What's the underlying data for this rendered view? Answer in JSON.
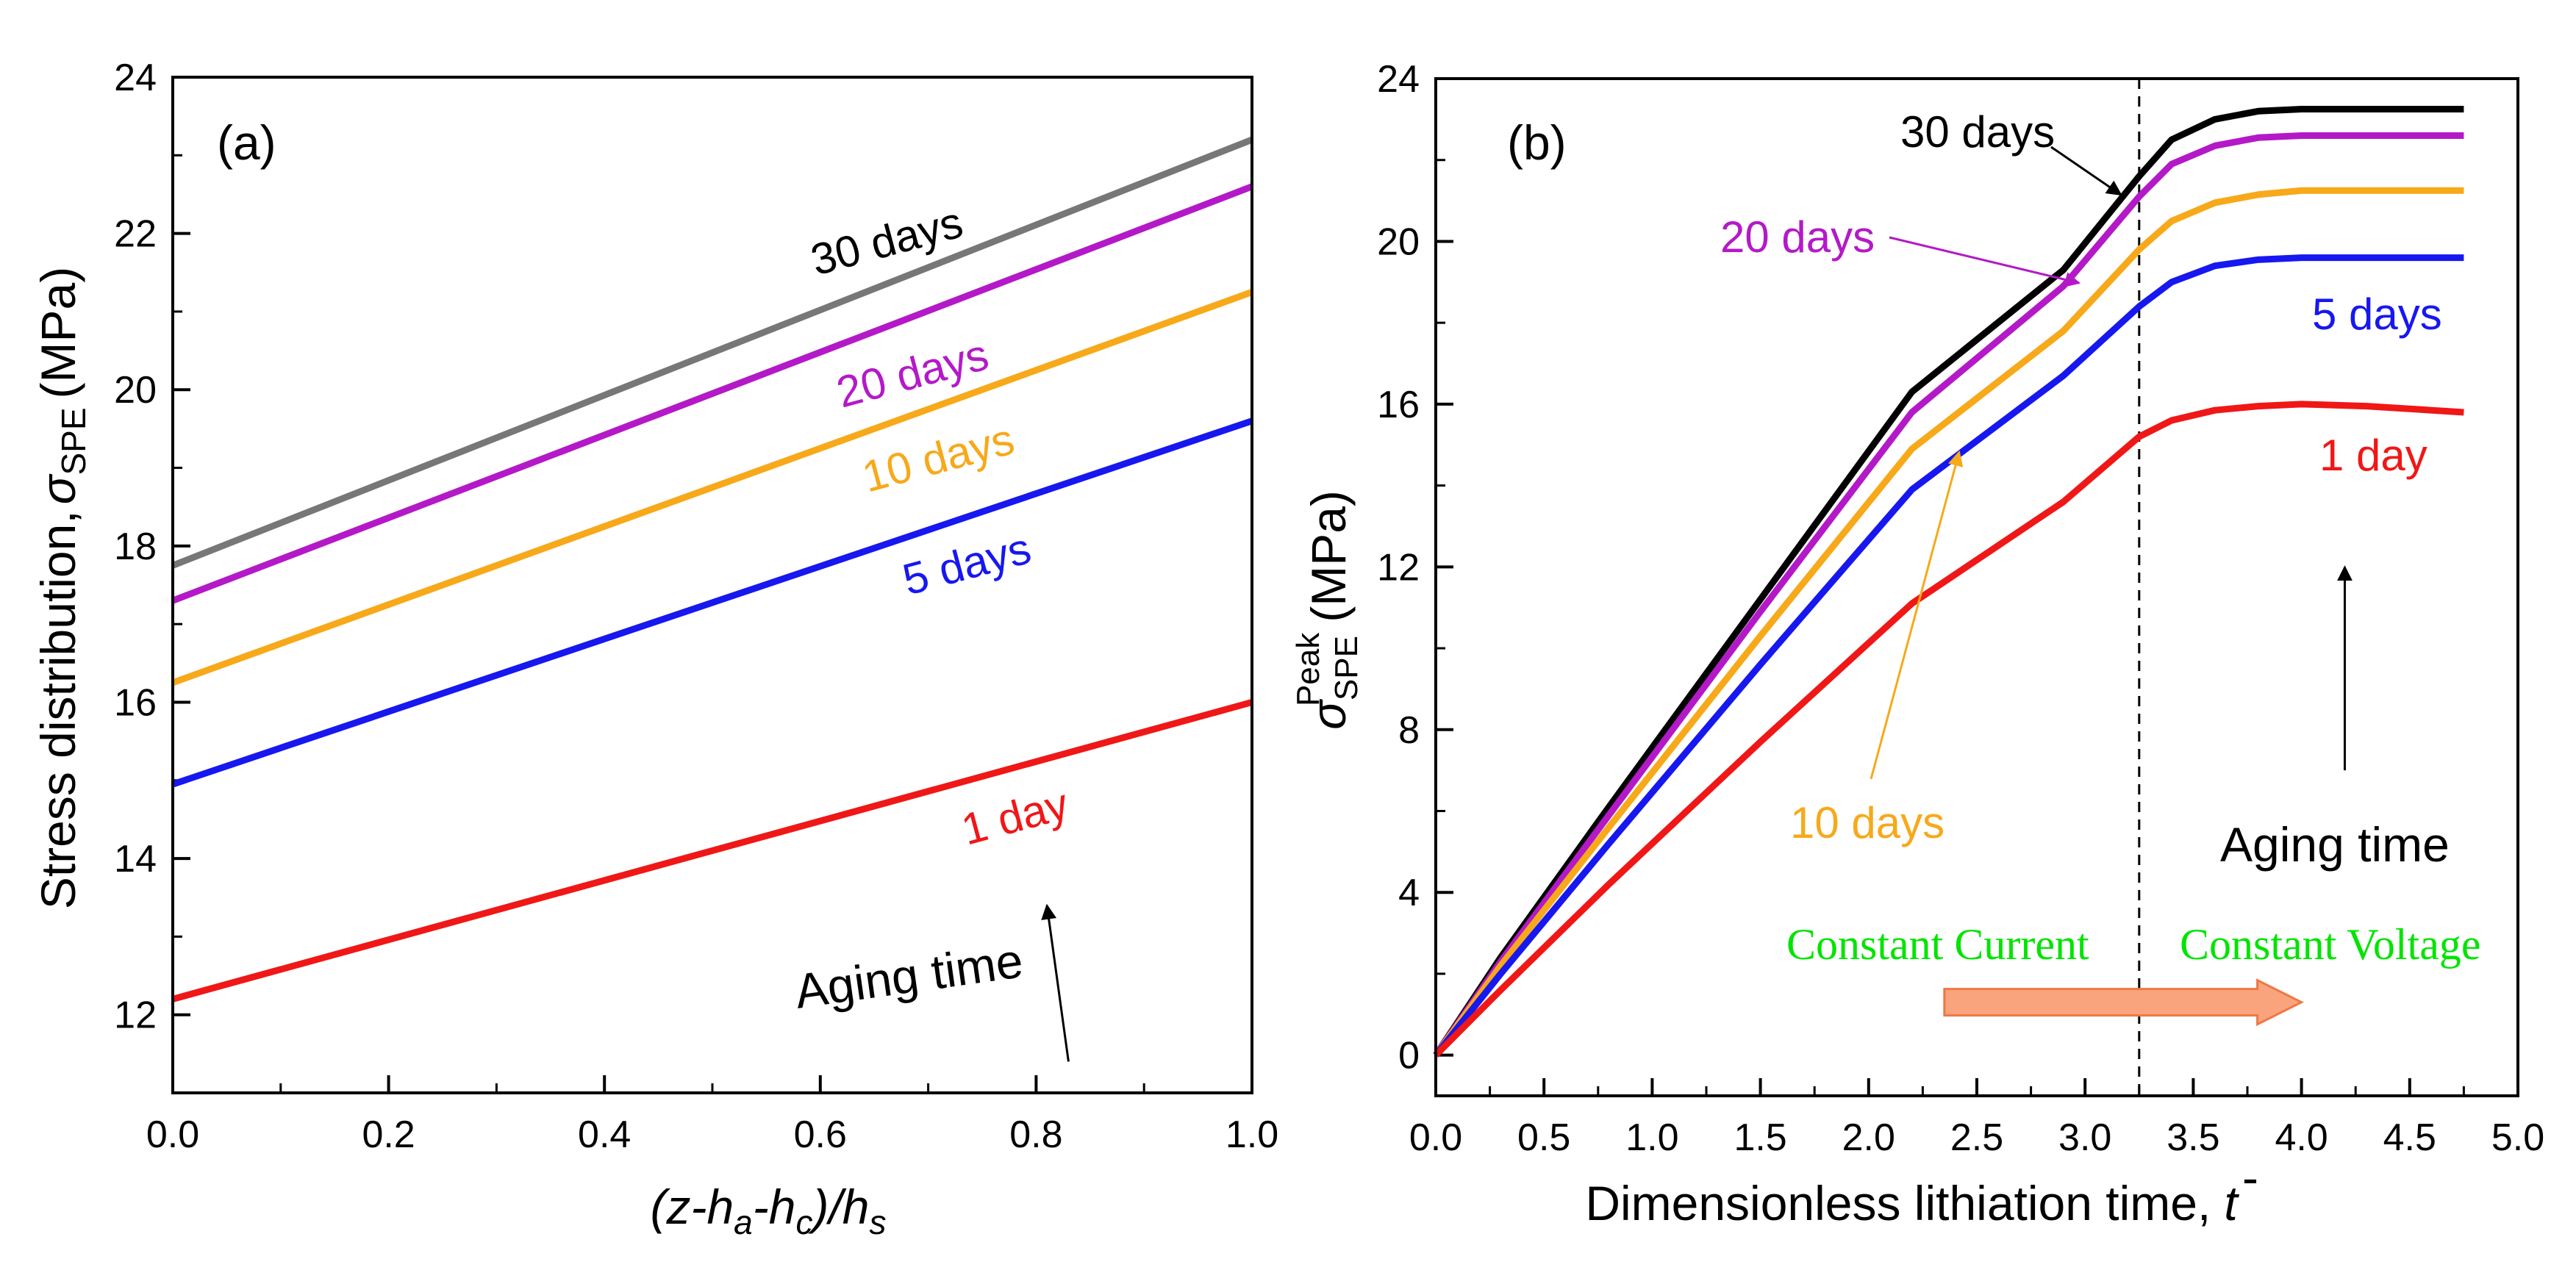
{
  "chart_data": [
    {
      "panel": "(a)",
      "type": "line",
      "xlabel": "(z-h_a-h_c)/h_s",
      "xlabel_parts": [
        "(z-",
        "h",
        "a",
        "-",
        "h",
        "c",
        ")/",
        "h",
        "s"
      ],
      "ylabel": "Stress distribution, σ_SPE (MPa)",
      "ylabel_parts": [
        "Stress distribution,",
        "σ",
        "SPE",
        "(MPa)"
      ],
      "xlim": [
        0.0,
        1.0
      ],
      "ylim": [
        11,
        24
      ],
      "xticks": [
        0.0,
        0.2,
        0.4,
        0.6,
        0.8,
        1.0
      ],
      "xtick_labels": [
        "0.0",
        "0.2",
        "0.4",
        "0.6",
        "0.8",
        "1.0"
      ],
      "yticks": [
        12,
        14,
        16,
        18,
        20,
        22,
        24
      ],
      "ytick_labels": [
        "12",
        "14",
        "16",
        "18",
        "20",
        "22",
        "24"
      ],
      "series": [
        {
          "name": "30 days",
          "color": "#777777",
          "x": [
            0.0,
            1.0
          ],
          "y": [
            17.75,
            23.2
          ]
        },
        {
          "name": "20 days",
          "color": "#b419c8",
          "x": [
            0.0,
            1.0
          ],
          "y": [
            17.3,
            22.6
          ]
        },
        {
          "name": "10 days",
          "color": "#f7a91a",
          "x": [
            0.0,
            1.0
          ],
          "y": [
            16.25,
            21.25
          ]
        },
        {
          "name": "5 days",
          "color": "#1717f0",
          "x": [
            0.0,
            1.0
          ],
          "y": [
            14.95,
            19.6
          ]
        },
        {
          "name": "1 day",
          "color": "#f01717",
          "x": [
            0.0,
            1.0
          ],
          "y": [
            12.2,
            16.0
          ]
        }
      ],
      "annotations": [
        {
          "text": "Aging time",
          "arrow_from": [
            0.83,
            11.4
          ],
          "arrow_to": [
            0.81,
            13.4
          ]
        }
      ]
    },
    {
      "panel": "(b)",
      "type": "line",
      "xlabel": "Dimensionless lithiation time, t̄",
      "xlabel_parts": [
        "Dimensionless lithiation time,",
        "t",
        "-"
      ],
      "ylabel": "σ_SPE^Peak (MPa)",
      "ylabel_parts": [
        "σ",
        "SPE",
        "Peak",
        "(MPa)"
      ],
      "xlim": [
        0.0,
        5.0
      ],
      "ylim": [
        -1,
        24
      ],
      "xticks": [
        0.0,
        0.5,
        1.0,
        1.5,
        2.0,
        2.5,
        3.0,
        3.5,
        4.0,
        4.5,
        5.0
      ],
      "xtick_labels": [
        "0.0",
        "0.5",
        "1.0",
        "1.5",
        "2.0",
        "2.5",
        "3.0",
        "3.5",
        "4.0",
        "4.5",
        "5.0"
      ],
      "yticks": [
        0,
        4,
        8,
        12,
        16,
        20,
        24
      ],
      "ytick_labels": [
        "0",
        "4",
        "8",
        "12",
        "16",
        "20",
        "24"
      ],
      "vline_x": 3.25,
      "series": [
        {
          "name": "30 days",
          "color": "#000000",
          "x": [
            0,
            0.3,
            0.8,
            1.5,
            2.2,
            2.9,
            3.25,
            3.4,
            3.6,
            3.8,
            4.0,
            4.3,
            4.75
          ],
          "y": [
            0,
            2.4,
            6.1,
            11.2,
            16.3,
            19.3,
            21.6,
            22.5,
            23.0,
            23.2,
            23.25,
            23.25,
            23.25
          ]
        },
        {
          "name": "20 days",
          "color": "#b419c8",
          "x": [
            0,
            0.3,
            0.8,
            1.5,
            2.2,
            2.9,
            3.25,
            3.4,
            3.6,
            3.8,
            4.0,
            4.3,
            4.75
          ],
          "y": [
            0,
            2.3,
            5.9,
            10.9,
            15.8,
            18.9,
            21.1,
            21.9,
            22.35,
            22.55,
            22.6,
            22.6,
            22.6
          ]
        },
        {
          "name": "10 days",
          "color": "#f7a91a",
          "x": [
            0,
            0.3,
            0.8,
            1.5,
            2.2,
            2.9,
            3.25,
            3.4,
            3.6,
            3.8,
            4.0,
            4.3,
            4.75
          ],
          "y": [
            0,
            2.2,
            5.6,
            10.3,
            14.9,
            17.8,
            19.8,
            20.5,
            20.95,
            21.15,
            21.25,
            21.25,
            21.25
          ]
        },
        {
          "name": "5 days",
          "color": "#1717f0",
          "x": [
            0,
            0.3,
            0.8,
            1.5,
            2.2,
            2.9,
            3.25,
            3.4,
            3.6,
            3.8,
            4.0,
            4.3,
            4.75
          ],
          "y": [
            0,
            2.0,
            5.2,
            9.6,
            13.9,
            16.7,
            18.4,
            19.0,
            19.4,
            19.55,
            19.6,
            19.6,
            19.6
          ]
        },
        {
          "name": "1 day",
          "color": "#f01717",
          "x": [
            0,
            0.3,
            0.8,
            1.5,
            2.2,
            2.9,
            3.25,
            3.4,
            3.6,
            3.8,
            4.0,
            4.3,
            4.75
          ],
          "y": [
            0,
            1.6,
            4.2,
            7.7,
            11.1,
            13.6,
            15.2,
            15.6,
            15.85,
            15.95,
            16.0,
            15.95,
            15.8
          ]
        }
      ],
      "annotations": [
        {
          "text": "Aging time",
          "arrow_from": [
            4.2,
            7.0
          ],
          "arrow_to": [
            4.2,
            12.0
          ]
        },
        {
          "text": "Constant Current"
        },
        {
          "text": "Constant Voltage"
        }
      ],
      "regime_arrow": {
        "from_x": 2.35,
        "to_x": 4.0,
        "y": 1.3,
        "fill": "#f9a47c",
        "stroke": "#ee7744"
      }
    }
  ]
}
